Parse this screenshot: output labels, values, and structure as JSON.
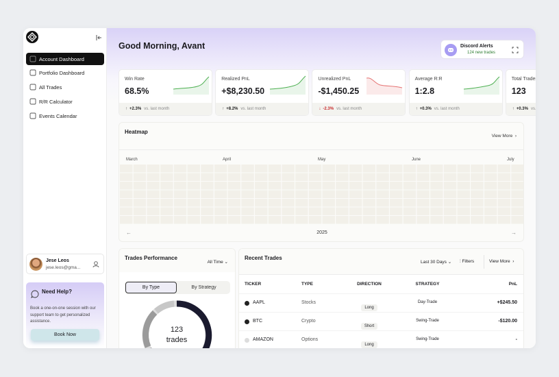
{
  "sidebar": {
    "nav": [
      "Account Dashboard",
      "Portfolio Dashboard",
      "All Trades",
      "R/R Calculator",
      "Events Calendar"
    ],
    "user": {
      "name": "Jese Leos",
      "email": "jese.leos@gma..."
    },
    "help": {
      "title": "Need Help?",
      "text": "Book a one-on-one session with our support team to get personalized assistance.",
      "button": "Book Now"
    }
  },
  "header": {
    "greeting": "Good Morning, Avant",
    "discord": {
      "title": "Discord Alerts",
      "subtitle": "124 new trades"
    }
  },
  "stats": [
    {
      "label": "Win Rate",
      "value": "68.5%",
      "change": "+2.3%",
      "note": "vs. last month"
    },
    {
      "label": "Realized PnL",
      "value": "+$8,230.50",
      "change": "+8.2%",
      "note": "vs. last month"
    },
    {
      "label": "Unrealized PnL",
      "value": "-$1,450.25",
      "change": "-2.3%",
      "note": "vs. last month"
    },
    {
      "label": "Average R:R",
      "value": "1:2.8",
      "change": "+0.3%",
      "note": "vs. last month"
    },
    {
      "label": "Total Trades",
      "value": "123",
      "change": "+0.3%",
      "note": "vs. last month"
    }
  ],
  "heatmap": {
    "title": "Heatmap",
    "view_more": "View More",
    "months": [
      "March",
      "April",
      "May",
      "June",
      "July"
    ],
    "year": "2025"
  },
  "trades_performance": {
    "title": "Trades Performance",
    "filter": "All Time",
    "tabs": [
      "By Type",
      "By Strategy"
    ],
    "center_value": "123",
    "center_label": "trades"
  },
  "recent_trades": {
    "title": "Recent Trades",
    "filter": "Last 30 Days",
    "filters": "Filters",
    "view_more": "View More",
    "columns": [
      "TICKER",
      "TYPE",
      "DIRECTION",
      "STRATEGY",
      "PnL"
    ],
    "rows": [
      [
        "AAPL",
        "Stocks",
        "Long",
        "Day-Trade",
        "+$245.50"
      ],
      [
        "BTC",
        "Crypto",
        "Short",
        "Swing-Trade",
        "-$120.00"
      ],
      [
        "AMAZON",
        "Options",
        "Long",
        "Swing-Trade",
        "-"
      ]
    ]
  }
}
